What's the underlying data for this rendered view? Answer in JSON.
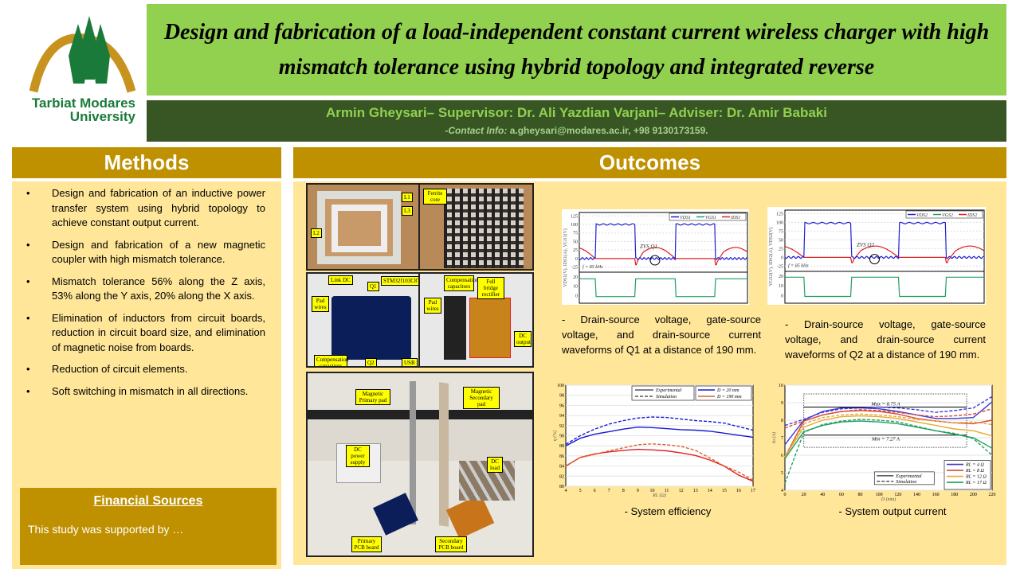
{
  "logo": {
    "text_line1": "Tarbiat Modares",
    "text_line2": "University",
    "colors": {
      "green": "#1a7a3a",
      "gold": "#c8921e"
    }
  },
  "header": {
    "title": "Design and fabrication of a load-independent constant current wireless charger with high mismatch tolerance using hybrid topology and integrated reverse",
    "authors": "Armin Gheysari– Supervisor: Dr. Ali Yazdian Varjani– Adviser: Dr. Amir Babaki",
    "contact_label": "Contact Info:",
    "contact_value": "a.gheysari@modares.ac.ir, +98 9130173159.",
    "contact_prefix": "-"
  },
  "colors": {
    "title_bg": "#92d050",
    "author_bg": "#375623",
    "section_header": "#bf9000",
    "section_body": "#ffe699"
  },
  "methods": {
    "title": "Methods",
    "items": [
      "Design and fabrication of an inductive power transfer system using hybrid topology to achieve constant output current.",
      "Design and fabrication of a new magnetic coupler with high mismatch tolerance.",
      "Mismatch tolerance 56% along the Z axis, 53% along the Y axis, 20% along the X axis.",
      "Elimination of inductors from circuit boards, reduction in circuit board size, and elimination of magnetic noise from boards.",
      "Reduction of circuit elements.",
      "Soft switching in mismatch in all directions."
    ],
    "financial": {
      "title": "Financial Sources",
      "text": "This study was supported by …"
    }
  },
  "outcomes": {
    "title": "Outcomes",
    "photos": {
      "coils": [
        "L1",
        "L3",
        "L2"
      ],
      "ferrite": [
        "Ferrite core"
      ],
      "primary_board": [
        "Link DC",
        "Q1",
        "STM32f103C8T6",
        "Pad wires",
        "Compensation capacitors",
        "Q2",
        "USB"
      ],
      "secondary_board": [
        "Compensation capacitors",
        "Full bridge rectifier",
        "Pad wires",
        "DC output"
      ],
      "setup": [
        "Magnetic Primary pad",
        "Magnetic Secondary pad",
        "DC power supply",
        "DC load",
        "Primary PCB board",
        "Secondary PCB board"
      ]
    },
    "captions": {
      "wave1": "- Drain-source voltage, gate-source voltage, and drain-source current waveforms of Q1 at a distance of 190 mm.",
      "wave2": "- Drain-source voltage, gate-source voltage, and drain-source current waveforms of Q2 at a distance of 190 mm.",
      "efficiency": "- System efficiency",
      "current": "- System output current"
    }
  },
  "chart_data": [
    {
      "type": "line",
      "id": "wave1",
      "legend": [
        "VDS1",
        "VGS1",
        "IDS1"
      ],
      "yticks_top": [
        -25,
        0,
        25,
        50,
        75,
        100,
        125
      ],
      "yticks_bottom": [
        0,
        10,
        20
      ],
      "ylabel_top": "VDS1(V), IDS1(A), VGS1(V)",
      "annotation": "ZVS Q1",
      "freq_label": "f = 85 kHz",
      "vds_high": 100,
      "ids_peak": 36,
      "ids_min": -18,
      "vgs_high": 18,
      "colors": [
        "#2020d0",
        "#20a060",
        "#e02020"
      ]
    },
    {
      "type": "line",
      "id": "wave2",
      "legend": [
        "VDS2",
        "VGS2",
        "IDS2"
      ],
      "yticks_top": [
        -25,
        0,
        25,
        50,
        75,
        100,
        125
      ],
      "yticks_bottom": [
        0,
        10,
        20
      ],
      "ylabel_top": "VGS2(V), IDS2(A), VDS2(V)",
      "annotation": "ZVS Q2",
      "freq_label": "f = 85 kHz",
      "vds_high": 98,
      "ids_peak": 36,
      "ids_min": -15,
      "vgs_high": 19,
      "colors": [
        "#2020d0",
        "#20a060",
        "#e02020"
      ]
    },
    {
      "type": "line",
      "id": "efficiency",
      "xlabel": "RL (Ω)",
      "ylabel": "η (%)",
      "xlim": [
        4,
        17
      ],
      "ylim": [
        80,
        100
      ],
      "x": [
        4,
        5,
        6,
        7,
        8,
        9,
        10,
        11,
        12,
        13,
        14,
        15,
        16,
        17
      ],
      "legend": [
        "Experimental",
        "Simulation",
        "D = 20 mm",
        "D = 190 mm"
      ],
      "series": [
        {
          "name": "D = 20 mm",
          "style": "Experimental",
          "color": "#1a1ad0",
          "values": [
            88,
            89.5,
            90.3,
            90.8,
            91.3,
            91.7,
            91.6,
            91.4,
            91.2,
            91.1,
            90.9,
            90.5,
            90.1,
            89.7
          ]
        },
        {
          "name": "D = 20 mm",
          "style": "Simulation",
          "color": "#1a1ad0",
          "values": [
            88.3,
            90,
            91.3,
            92.3,
            93,
            93.5,
            93.7,
            93.6,
            93.3,
            93,
            92.8,
            92.5,
            91.8,
            91.1
          ]
        },
        {
          "name": "D = 190 mm",
          "style": "Experimental",
          "color": "#e02020",
          "values": [
            84,
            85.7,
            86.4,
            86.8,
            87.1,
            87.3,
            87.2,
            87,
            86.6,
            86.1,
            85.2,
            84,
            82.2,
            81
          ]
        },
        {
          "name": "D = 190 mm",
          "style": "Simulation",
          "color": "#e0602a",
          "values": [
            84,
            85.7,
            86.3,
            87,
            87.6,
            88.2,
            88.4,
            88.2,
            87.9,
            87.1,
            85.6,
            84,
            82.8,
            81.2
          ]
        }
      ]
    },
    {
      "type": "line",
      "id": "current",
      "xlabel": "D (mm)",
      "ylabel": "Io (A)",
      "xlim": [
        0,
        220
      ],
      "ylim": [
        4,
        10
      ],
      "x": [
        0,
        20,
        40,
        60,
        80,
        100,
        120,
        140,
        160,
        180,
        200,
        220
      ],
      "legend": [
        "Experimental",
        "Simulation",
        "RL = 4 Ω",
        "RL = 8 Ω",
        "RL = 12 Ω",
        "RL = 17 Ω"
      ],
      "annotations": [
        "Max = 8.75 A",
        "Min = 7.27 A"
      ],
      "series": [
        {
          "name": "RL = 4 Ω",
          "style": "Experimental",
          "color": "#3a3ad8",
          "values": [
            6.6,
            8.0,
            8.5,
            8.7,
            8.7,
            8.65,
            8.5,
            8.3,
            8.1,
            8.1,
            8.15,
            9.05
          ]
        },
        {
          "name": "RL = 4 Ω",
          "style": "Simulation",
          "color": "#3a3ad8",
          "values": [
            7.7,
            8.05,
            8.45,
            8.65,
            8.7,
            8.75,
            8.7,
            8.6,
            8.45,
            8.55,
            8.7,
            9.35
          ]
        },
        {
          "name": "RL = 8 Ω",
          "style": "Experimental",
          "color": "#d84a3a",
          "values": [
            5.9,
            7.95,
            8.3,
            8.5,
            8.55,
            8.5,
            8.35,
            8.1,
            7.95,
            7.85,
            7.8,
            8.0
          ]
        },
        {
          "name": "RL = 8 Ω",
          "style": "Simulation",
          "color": "#d84a3a",
          "values": [
            7.55,
            7.95,
            8.3,
            8.5,
            8.6,
            8.55,
            8.45,
            8.3,
            8.2,
            8.25,
            8.35,
            8.65
          ]
        },
        {
          "name": "RL = 12 Ω",
          "style": "Experimental",
          "color": "#e8a830",
          "values": [
            5.9,
            7.6,
            8.0,
            8.2,
            8.25,
            8.2,
            8.1,
            7.9,
            7.7,
            7.5,
            7.4,
            7.1
          ]
        },
        {
          "name": "RL = 12 Ω",
          "style": "Simulation",
          "color": "#e8a830",
          "values": [
            5.9,
            7.8,
            8.15,
            8.3,
            8.35,
            8.3,
            8.2,
            8.05,
            7.95,
            7.85,
            7.9,
            7.75
          ]
        },
        {
          "name": "RL = 17 Ω",
          "style": "Experimental",
          "color": "#20a060",
          "values": [
            5.8,
            7.35,
            7.7,
            7.9,
            7.95,
            7.9,
            7.8,
            7.6,
            7.4,
            7.2,
            7.0,
            6.4
          ]
        },
        {
          "name": "RL = 17 Ω",
          "style": "Simulation",
          "color": "#20a060",
          "values": [
            4.4,
            7.3,
            7.75,
            7.95,
            8.05,
            8.0,
            7.9,
            7.65,
            7.4,
            7.25,
            6.95,
            6.0
          ]
        }
      ]
    }
  ]
}
